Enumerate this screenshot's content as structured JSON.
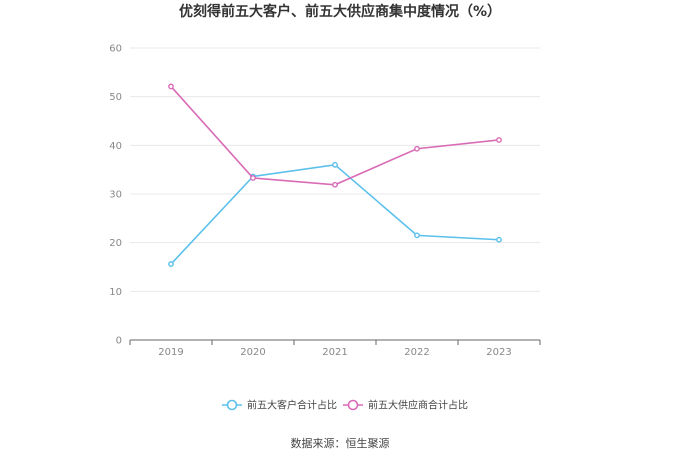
{
  "chart_data": {
    "type": "line",
    "title": "优刻得前五大客户、前五大供应商集中度情况（%）",
    "x": [
      "2019",
      "2020",
      "2021",
      "2022",
      "2023"
    ],
    "series": [
      {
        "name": "前五大客户合计占比",
        "values": [
          15.6,
          33.6,
          36.0,
          21.5,
          20.6
        ],
        "color": "#5bc0eb"
      },
      {
        "name": "前五大供应商合计占比",
        "values": [
          52.1,
          33.3,
          31.9,
          39.3,
          41.1
        ],
        "color": "#d96bb6"
      }
    ],
    "ylim": [
      0,
      60
    ],
    "yticks": [
      "0",
      "10",
      "20",
      "30",
      "40",
      "50",
      "60"
    ],
    "grid": true,
    "legend": "bottom-center"
  },
  "footer": {
    "source": "数据来源：恒生聚源"
  }
}
